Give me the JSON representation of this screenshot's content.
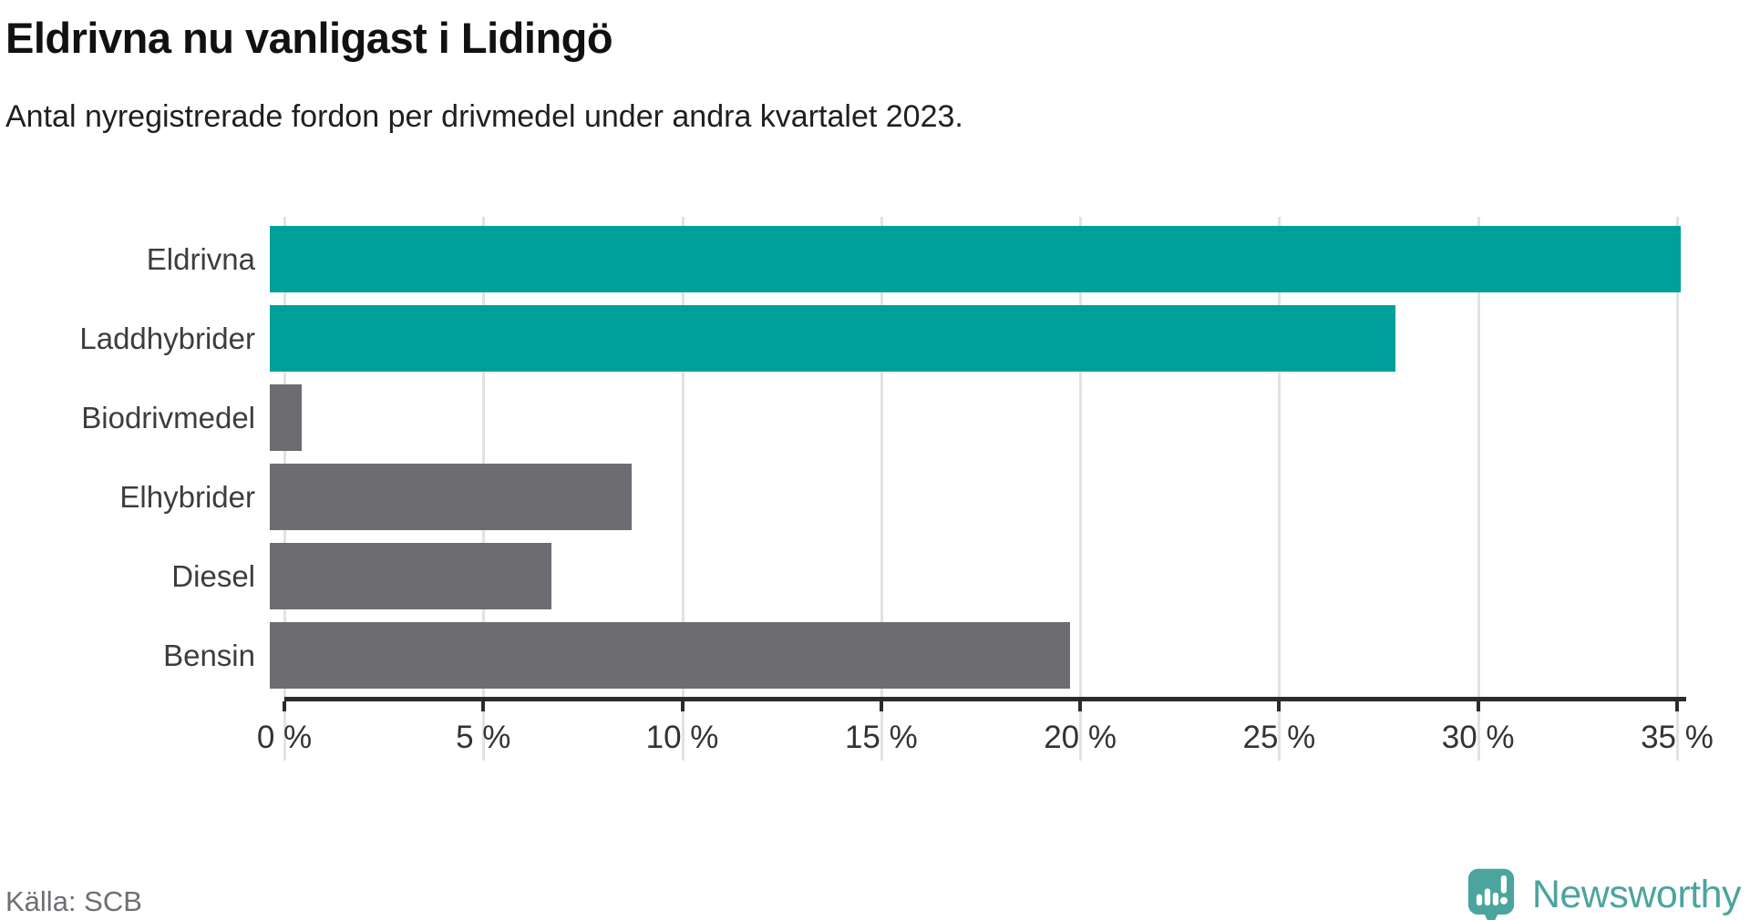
{
  "header": {
    "title": "Eldrivna nu vanligast i Lidingö",
    "subtitle": "Antal nyregistrerade fordon per drivmedel under andra kvartalet 2023."
  },
  "chart_data": {
    "type": "bar",
    "orientation": "horizontal",
    "title": "Eldrivna nu vanligast i Lidingö",
    "subtitle": "Antal nyregistrerade fordon per drivmedel under andra kvartalet 2023.",
    "categories": [
      "Eldrivna",
      "Laddhybrider",
      "Biodrivmedel",
      "Elhybrider",
      "Diesel",
      "Bensin"
    ],
    "values": [
      35.1,
      28.0,
      0.8,
      9.0,
      7.0,
      19.9
    ],
    "unit": "%",
    "bar_colors": [
      "#00a09a",
      "#00a09a",
      "#6c6c71",
      "#6c6c71",
      "#6c6c71",
      "#6c6c71"
    ],
    "xlabel": "",
    "ylabel": "",
    "xlim": [
      0,
      35.23
    ],
    "xticks": [
      0,
      5,
      10,
      15,
      20,
      25,
      30,
      35
    ],
    "xtick_labels": [
      "0 %",
      "5 %",
      "10 %",
      "15 %",
      "20 %",
      "25 %",
      "30 %",
      "35 %"
    ],
    "grid": true,
    "legend": false
  },
  "colors": {
    "accent_teal": "#00a09a",
    "neutral_gray": "#6c6c71",
    "grid": "#e2e2e2",
    "axis": "#2b2b2b",
    "brand_teal": "#4ca49e"
  },
  "footer": {
    "source": "Källa: SCB",
    "brand": "Newsworthy",
    "brand_icon": "newsworthy-speech-bubble-chart-icon"
  }
}
